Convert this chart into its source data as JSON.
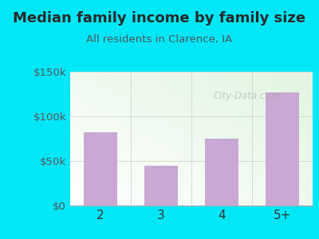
{
  "title": "Median family income by family size",
  "subtitle": "All residents in Clarence, IA",
  "categories": [
    "2",
    "3",
    "4",
    "5+"
  ],
  "values": [
    82000,
    45000,
    75000,
    127000
  ],
  "bar_color": "#c9a8d4",
  "ylim": [
    0,
    150000
  ],
  "yticks": [
    0,
    50000,
    100000,
    150000
  ],
  "ytick_labels": [
    "$0",
    "$50k",
    "$100k",
    "$150k"
  ],
  "bg_outer": "#00e8f8",
  "title_color": "#2a2a2a",
  "subtitle_color": "#555555",
  "ytick_color": "#555555",
  "xtick_color": "#333333",
  "watermark_text": "City-Data.com",
  "title_fontsize": 13,
  "subtitle_fontsize": 9.5
}
